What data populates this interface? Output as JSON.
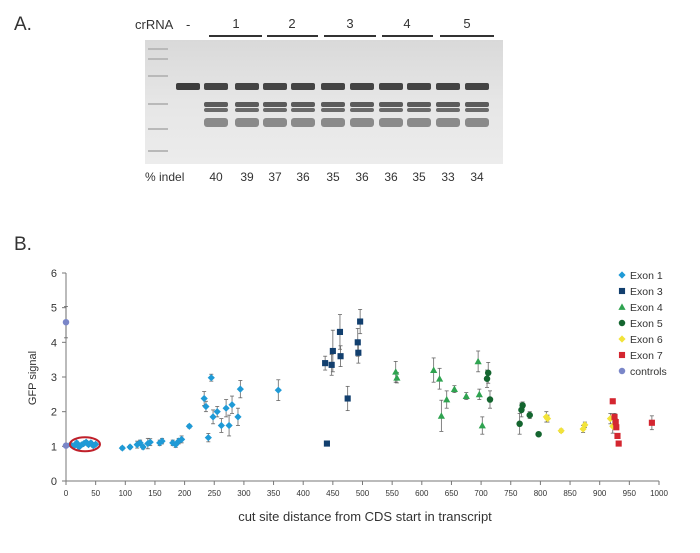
{
  "panel_a": {
    "label": "A.",
    "crRNA_label": "crRNA",
    "negative_control_label": "-",
    "group_labels": [
      "1",
      "2",
      "3",
      "4",
      "5"
    ],
    "indel_label": "% indel",
    "indel_values": [
      "40",
      "39",
      "37",
      "36",
      "35",
      "36",
      "36",
      "35",
      "33",
      "34"
    ]
  },
  "panel_b": {
    "label": "B."
  },
  "chart_data": {
    "type": "scatter",
    "xlabel": "cut site distance from CDS start in transcript",
    "ylabel": "GFP signal",
    "xlim": [
      0,
      1000
    ],
    "ylim": [
      0,
      6
    ],
    "xticks": [
      "0",
      "50",
      "100",
      "150",
      "200",
      "250",
      "300",
      "350",
      "400",
      "450",
      "500",
      "550",
      "600",
      "650",
      "700",
      "750",
      "800",
      "850",
      "900",
      "950",
      "1000"
    ],
    "yticks": [
      "0",
      "1",
      "2",
      "3",
      "4",
      "5",
      "6"
    ],
    "grid": false,
    "legend_position": "top-right",
    "highlight": {
      "shape": "ellipse",
      "color": "#c0202a",
      "x": 32,
      "y": 1.06
    },
    "series": [
      {
        "name": "Exon 1",
        "marker": "diamond",
        "color": "#1f9ad6",
        "points": [
          {
            "x": 8,
            "y": 1.05,
            "err": 0.05
          },
          {
            "x": 14,
            "y": 1.02,
            "err": 0.05
          },
          {
            "x": 18,
            "y": 1.1,
            "err": 0.05
          },
          {
            "x": 22,
            "y": 0.98,
            "err": 0.05
          },
          {
            "x": 26,
            "y": 1.04,
            "err": 0.05
          },
          {
            "x": 30,
            "y": 1.08,
            "err": 0.05
          },
          {
            "x": 34,
            "y": 1.12,
            "err": 0.05
          },
          {
            "x": 38,
            "y": 1.05,
            "err": 0.05
          },
          {
            "x": 42,
            "y": 1.1,
            "err": 0.05
          },
          {
            "x": 46,
            "y": 1.02,
            "err": 0.05
          },
          {
            "x": 50,
            "y": 1.06,
            "err": 0.05
          },
          {
            "x": 95,
            "y": 0.95,
            "err": 0.05
          },
          {
            "x": 108,
            "y": 0.98,
            "err": 0.05
          },
          {
            "x": 120,
            "y": 1.05,
            "err": 0.1
          },
          {
            "x": 125,
            "y": 1.1,
            "err": 0.08
          },
          {
            "x": 130,
            "y": 0.98,
            "err": 0.06
          },
          {
            "x": 138,
            "y": 1.08,
            "err": 0.15
          },
          {
            "x": 142,
            "y": 1.12,
            "err": 0.1
          },
          {
            "x": 158,
            "y": 1.1,
            "err": 0.08
          },
          {
            "x": 162,
            "y": 1.15,
            "err": 0.08
          },
          {
            "x": 180,
            "y": 1.1,
            "err": 0.08
          },
          {
            "x": 185,
            "y": 1.05,
            "err": 0.08
          },
          {
            "x": 190,
            "y": 1.15,
            "err": 0.08
          },
          {
            "x": 195,
            "y": 1.2,
            "err": 0.1
          },
          {
            "x": 208,
            "y": 1.58,
            "err": 0.05
          },
          {
            "x": 233,
            "y": 2.38,
            "err": 0.2
          },
          {
            "x": 236,
            "y": 2.15,
            "err": 0.15
          },
          {
            "x": 240,
            "y": 1.25,
            "err": 0.12
          },
          {
            "x": 245,
            "y": 2.98,
            "err": 0.1
          },
          {
            "x": 248,
            "y": 1.85,
            "err": 0.2
          },
          {
            "x": 255,
            "y": 2.0,
            "err": 0.15
          },
          {
            "x": 262,
            "y": 1.6,
            "err": 0.2
          },
          {
            "x": 270,
            "y": 2.1,
            "err": 0.25
          },
          {
            "x": 275,
            "y": 1.6,
            "err": 0.3
          },
          {
            "x": 280,
            "y": 2.2,
            "err": 0.25
          },
          {
            "x": 290,
            "y": 1.85,
            "err": 0.25
          },
          {
            "x": 294,
            "y": 2.65,
            "err": 0.25
          },
          {
            "x": 358,
            "y": 2.62,
            "err": 0.3
          }
        ]
      },
      {
        "name": "Exon 3",
        "marker": "square",
        "color": "#123f6e",
        "points": [
          {
            "x": 437,
            "y": 3.4,
            "err": 0.2
          },
          {
            "x": 440,
            "y": 1.08,
            "err": 0.05
          },
          {
            "x": 448,
            "y": 3.35,
            "err": 0.3
          },
          {
            "x": 450,
            "y": 3.75,
            "err": 0.6
          },
          {
            "x": 462,
            "y": 4.3,
            "err": 0.5
          },
          {
            "x": 463,
            "y": 3.6,
            "err": 0.3
          },
          {
            "x": 475,
            "y": 2.38,
            "err": 0.35
          },
          {
            "x": 492,
            "y": 4.0,
            "err": 0.4
          },
          {
            "x": 493,
            "y": 3.7,
            "err": 0.3
          },
          {
            "x": 496,
            "y": 4.6,
            "err": 0.35
          }
        ]
      },
      {
        "name": "Exon 4",
        "marker": "triangle",
        "color": "#2fa350",
        "points": [
          {
            "x": 556,
            "y": 3.15,
            "err": 0.3
          },
          {
            "x": 558,
            "y": 2.98,
            "err": 0.15
          },
          {
            "x": 620,
            "y": 3.2,
            "err": 0.35
          },
          {
            "x": 630,
            "y": 2.95,
            "err": 0.3
          },
          {
            "x": 633,
            "y": 1.88,
            "err": 0.45
          },
          {
            "x": 642,
            "y": 2.35,
            "err": 0.25
          },
          {
            "x": 655,
            "y": 2.65,
            "err": 0.1
          },
          {
            "x": 675,
            "y": 2.45,
            "err": 0.1
          },
          {
            "x": 695,
            "y": 3.45,
            "err": 0.3
          },
          {
            "x": 697,
            "y": 2.5,
            "err": 0.15
          },
          {
            "x": 702,
            "y": 1.6,
            "err": 0.25
          }
        ]
      },
      {
        "name": "Exon 5",
        "marker": "circle",
        "color": "#14652f",
        "points": [
          {
            "x": 710,
            "y": 2.95,
            "err": 0.25
          },
          {
            "x": 712,
            "y": 3.12,
            "err": 0.3
          },
          {
            "x": 715,
            "y": 2.35,
            "err": 0.25
          },
          {
            "x": 765,
            "y": 1.65,
            "err": 0.3
          },
          {
            "x": 768,
            "y": 2.05,
            "err": 0.2
          },
          {
            "x": 770,
            "y": 2.18,
            "err": 0.1
          },
          {
            "x": 782,
            "y": 1.9,
            "err": 0.1
          },
          {
            "x": 797,
            "y": 1.35,
            "err": 0.05
          }
        ]
      },
      {
        "name": "Exon 6",
        "marker": "diamond",
        "color": "#f2e33a",
        "points": [
          {
            "x": 810,
            "y": 1.85,
            "err": 0.15
          },
          {
            "x": 812,
            "y": 1.8,
            "err": 0.1
          },
          {
            "x": 835,
            "y": 1.45,
            "err": 0.05
          },
          {
            "x": 872,
            "y": 1.5,
            "err": 0.1
          },
          {
            "x": 875,
            "y": 1.62,
            "err": 0.08
          },
          {
            "x": 918,
            "y": 1.8,
            "err": 0.15
          },
          {
            "x": 922,
            "y": 1.58,
            "err": 0.2
          }
        ]
      },
      {
        "name": "Exon 7",
        "marker": "square",
        "color": "#d42630",
        "points": [
          {
            "x": 922,
            "y": 2.3,
            "err": 0.05
          },
          {
            "x": 925,
            "y": 1.85,
            "err": 0.1
          },
          {
            "x": 927,
            "y": 1.7,
            "err": 0.1
          },
          {
            "x": 928,
            "y": 1.55,
            "err": 0.05
          },
          {
            "x": 930,
            "y": 1.3,
            "err": 0.05
          },
          {
            "x": 932,
            "y": 1.08,
            "err": 0.05
          },
          {
            "x": 988,
            "y": 1.68,
            "err": 0.2
          }
        ]
      },
      {
        "name": "controls",
        "marker": "circle",
        "color": "#7a86c8",
        "points": [
          {
            "x": 0,
            "y": 4.58,
            "err": 0.45
          },
          {
            "x": 0,
            "y": 1.02,
            "err": 0.04
          }
        ]
      }
    ]
  }
}
